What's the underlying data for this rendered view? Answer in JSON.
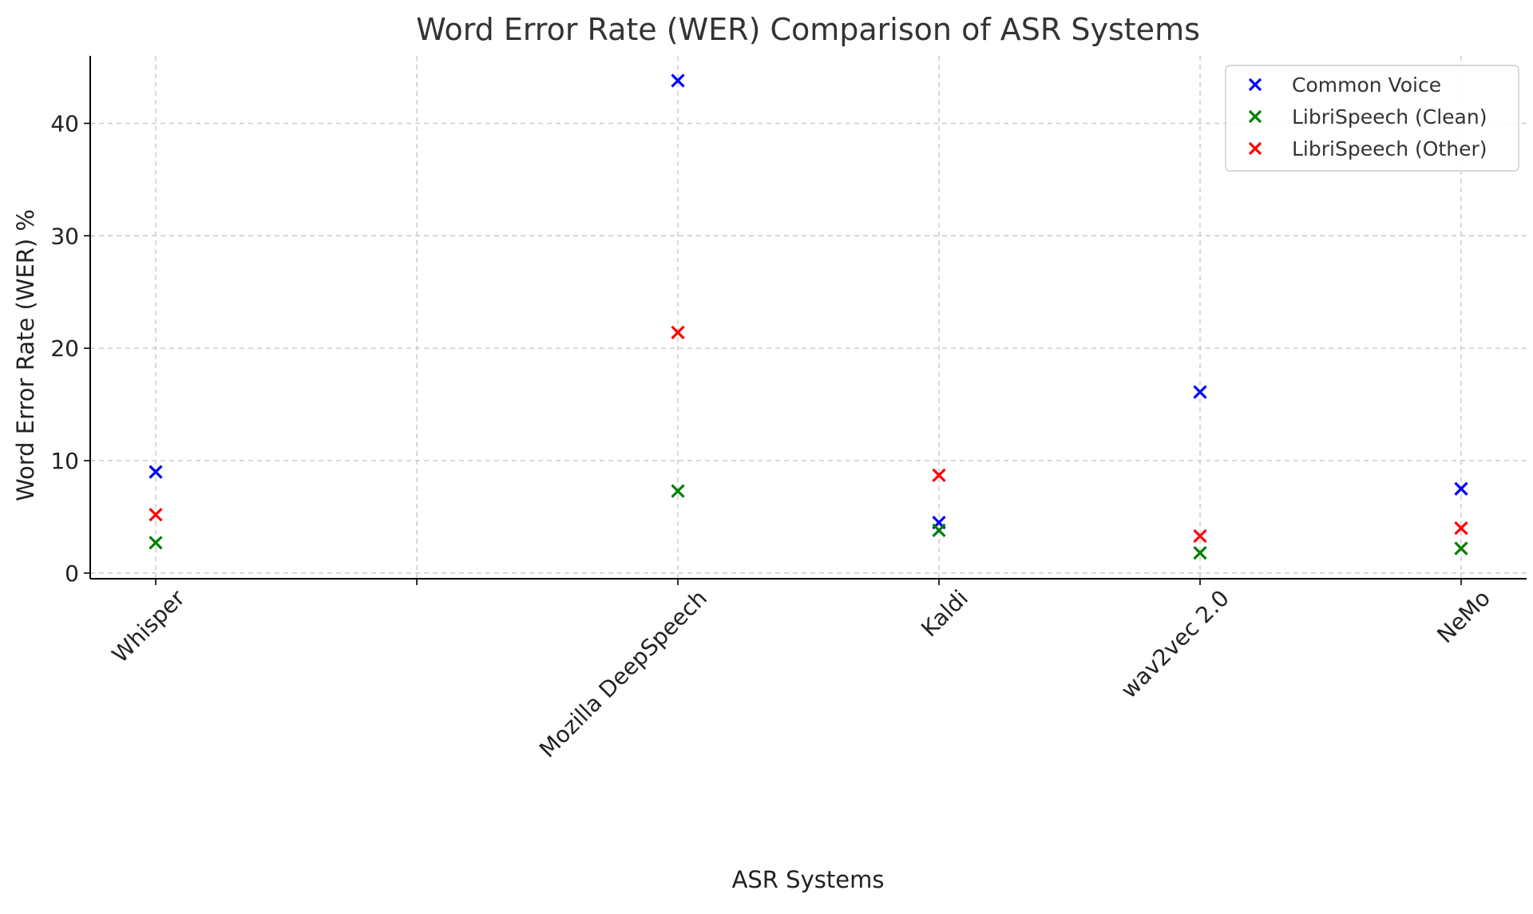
{
  "chart_data": {
    "type": "scatter",
    "title": "Word Error Rate (WER) Comparison of ASR Systems",
    "xlabel": "ASR Systems",
    "ylabel": "Word Error Rate (WER) %",
    "ylim": [
      -0.5,
      46
    ],
    "yticks": [
      0,
      10,
      20,
      30,
      40
    ],
    "grid": true,
    "legend_position": "top-right",
    "marker": "x",
    "categories": [
      {
        "label": "Whisper",
        "pos": 0
      },
      {
        "label": "",
        "pos": 1
      },
      {
        "label": "Mozilla DeepSpeech",
        "pos": 2
      },
      {
        "label": "Kaldi",
        "pos": 3
      },
      {
        "label": "wav2vec 2.0",
        "pos": 4
      },
      {
        "label": "NeMo",
        "pos": 5
      }
    ],
    "series": [
      {
        "name": "Common Voice",
        "color": "#0000ff",
        "x": [
          0,
          2,
          3,
          4,
          5
        ],
        "values": [
          9.0,
          43.8,
          4.5,
          16.1,
          7.5
        ]
      },
      {
        "name": "LibriSpeech (Clean)",
        "color": "#008000",
        "x": [
          0,
          2,
          3,
          4,
          5
        ],
        "values": [
          2.7,
          7.3,
          3.8,
          1.8,
          2.2
        ]
      },
      {
        "name": "LibriSpeech (Other)",
        "color": "#ff0000",
        "x": [
          0,
          2,
          3,
          4,
          5
        ],
        "values": [
          5.2,
          21.4,
          8.7,
          3.3,
          4.0
        ]
      }
    ]
  }
}
